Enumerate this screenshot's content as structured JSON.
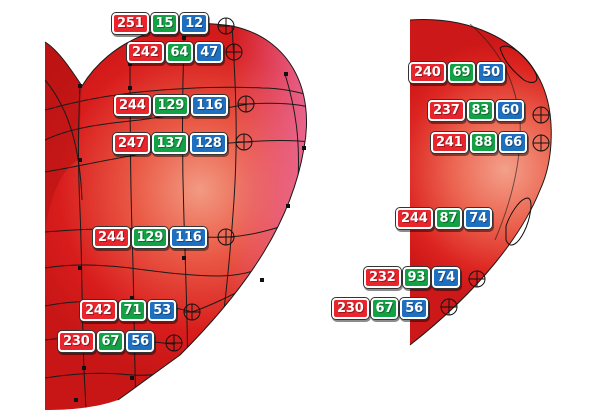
{
  "chip_colors": {
    "r": "#e8242c",
    "g": "#14a044",
    "b": "#1f6fc0"
  },
  "fill_colors": {
    "base": "#d81c1c",
    "highlight": "#f08872",
    "pink_edge": "#ec6fa2"
  },
  "left_heart": {
    "labels": [
      {
        "r": "251",
        "g": "15",
        "b": "12"
      },
      {
        "r": "242",
        "g": "64",
        "b": "47"
      },
      {
        "r": "244",
        "g": "129",
        "b": "116"
      },
      {
        "r": "247",
        "g": "137",
        "b": "128"
      },
      {
        "r": "244",
        "g": "129",
        "b": "116"
      },
      {
        "r": "242",
        "g": "71",
        "b": "53"
      },
      {
        "r": "230",
        "g": "67",
        "b": "56"
      }
    ]
  },
  "right_heart": {
    "labels": [
      {
        "r": "240",
        "g": "69",
        "b": "50"
      },
      {
        "r": "237",
        "g": "83",
        "b": "60"
      },
      {
        "r": "241",
        "g": "88",
        "b": "66"
      },
      {
        "r": "244",
        "g": "87",
        "b": "74"
      },
      {
        "r": "232",
        "g": "93",
        "b": "74"
      },
      {
        "r": "230",
        "g": "67",
        "b": "56"
      }
    ]
  }
}
